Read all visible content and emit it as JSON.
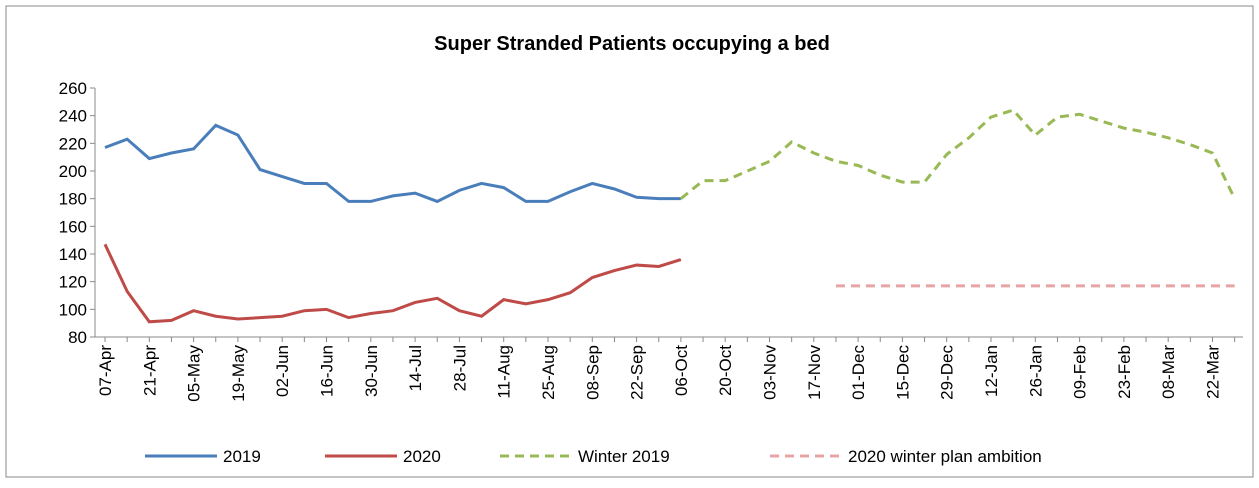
{
  "chart_data": {
    "type": "line",
    "title": "Super Stranded Patients occupying a bed",
    "categories": [
      "07-Apr",
      null,
      "21-Apr",
      null,
      "05-May",
      null,
      "19-May",
      null,
      "02-Jun",
      null,
      "16-Jun",
      null,
      "30-Jun",
      null,
      "14-Jul",
      null,
      "28-Jul",
      null,
      "11-Aug",
      null,
      "25-Aug",
      null,
      "08-Sep",
      null,
      "22-Sep",
      null,
      "06-Oct",
      null,
      "20-Oct",
      null,
      "03-Nov",
      null,
      "17-Nov",
      null,
      "01-Dec",
      null,
      "15-Dec",
      null,
      "29-Dec",
      null,
      "12-Jan",
      null,
      "26-Jan",
      null,
      "09-Feb",
      null,
      "23-Feb",
      null,
      "08-Mar",
      null,
      "22-Mar",
      null
    ],
    "ylim": [
      80,
      260
    ],
    "yticks": [
      80,
      100,
      120,
      140,
      160,
      180,
      200,
      220,
      240,
      260
    ],
    "series": [
      {
        "name": "2019",
        "color": "#4a7ebb",
        "dash": false,
        "values": [
          217,
          223,
          209,
          213,
          216,
          233,
          226,
          201,
          196,
          191,
          191,
          178,
          178,
          182,
          184,
          178,
          186,
          191,
          188,
          178,
          178,
          185,
          191,
          187,
          181,
          180,
          180,
          null,
          null,
          null,
          null,
          null,
          null,
          null,
          null,
          null,
          null,
          null,
          null,
          null,
          null,
          null,
          null,
          null,
          null,
          null,
          null,
          null,
          null,
          null,
          null,
          null
        ]
      },
      {
        "name": "2020",
        "color": "#be4b48",
        "dash": false,
        "values": [
          147,
          113,
          91,
          92,
          99,
          95,
          93,
          94,
          95,
          99,
          100,
          94,
          97,
          99,
          105,
          108,
          99,
          95,
          107,
          104,
          107,
          112,
          123,
          128,
          132,
          131,
          136,
          null,
          null,
          null,
          null,
          null,
          null,
          null,
          null,
          null,
          null,
          null,
          null,
          null,
          null,
          null,
          null,
          null,
          null,
          null,
          null,
          null,
          null,
          null,
          null,
          null
        ]
      },
      {
        "name": "Winter 2019",
        "color": "#98b954",
        "dash": true,
        "values": [
          null,
          null,
          null,
          null,
          null,
          null,
          null,
          null,
          null,
          null,
          null,
          null,
          null,
          null,
          null,
          null,
          null,
          null,
          null,
          null,
          null,
          null,
          null,
          null,
          null,
          null,
          180,
          193,
          193,
          200,
          207,
          221,
          213,
          207,
          204,
          197,
          192,
          192,
          212,
          224,
          239,
          244,
          226,
          239,
          241,
          236,
          231,
          228,
          224,
          219,
          213,
          180
        ]
      },
      {
        "name": "2020 winter plan ambition",
        "color": "#e6a5a4",
        "dash": true,
        "values": [
          null,
          null,
          null,
          null,
          null,
          null,
          null,
          null,
          null,
          null,
          null,
          null,
          null,
          null,
          null,
          null,
          null,
          null,
          null,
          null,
          null,
          null,
          null,
          null,
          null,
          null,
          null,
          null,
          null,
          null,
          null,
          null,
          null,
          117,
          117,
          117,
          117,
          117,
          117,
          117,
          117,
          117,
          117,
          117,
          117,
          117,
          117,
          117,
          117,
          117,
          117,
          117
        ]
      }
    ]
  }
}
